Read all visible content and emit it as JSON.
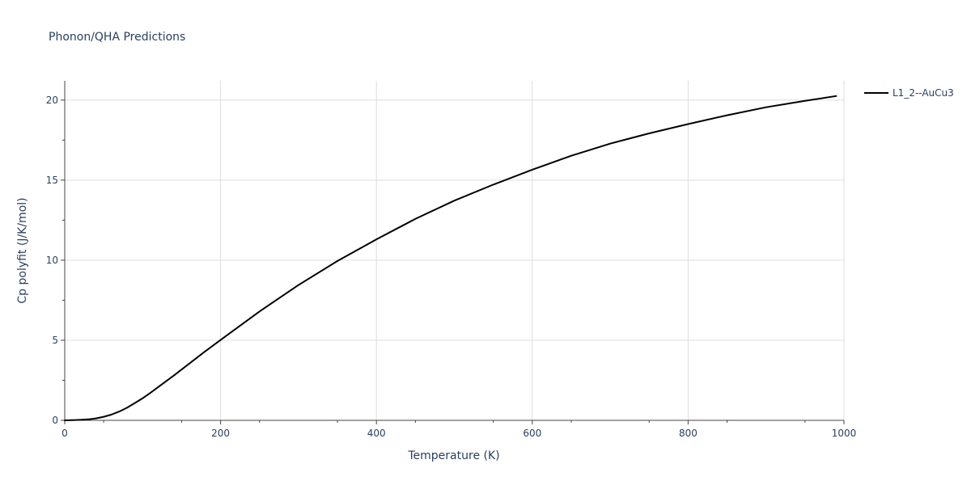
{
  "chart_data": {
    "type": "line",
    "title": "Phonon/QHA Predictions",
    "xlabel": "Temperature (K)",
    "ylabel": "Cp polyfit (J/K/mol)",
    "xlim": [
      0,
      1000
    ],
    "ylim": [
      0,
      21.2
    ],
    "x_ticks": [
      0,
      200,
      400,
      600,
      800,
      1000
    ],
    "x_tick_labels": [
      "0",
      "200",
      "400",
      "600",
      "800",
      "1000"
    ],
    "y_ticks": [
      0,
      5,
      10,
      15,
      20
    ],
    "y_tick_labels": [
      "0",
      "5",
      "10",
      "15",
      "20"
    ],
    "grid": true,
    "legend_position": "top-right",
    "series": [
      {
        "name": "L1_2--AuCu3",
        "color": "#000000",
        "x": [
          0,
          10,
          20,
          30,
          40,
          50,
          60,
          70,
          80,
          90,
          100,
          110,
          120,
          140,
          160,
          180,
          200,
          250,
          300,
          350,
          400,
          450,
          500,
          550,
          600,
          650,
          700,
          750,
          800,
          850,
          900,
          950,
          990
        ],
        "y": [
          0,
          0.01,
          0.03,
          0.06,
          0.12,
          0.22,
          0.36,
          0.55,
          0.79,
          1.08,
          1.38,
          1.72,
          2.08,
          2.8,
          3.55,
          4.3,
          5.02,
          6.8,
          8.45,
          9.95,
          11.3,
          12.58,
          13.72,
          14.72,
          15.65,
          16.52,
          17.28,
          17.92,
          18.5,
          19.05,
          19.55,
          19.95,
          20.25
        ]
      }
    ]
  }
}
